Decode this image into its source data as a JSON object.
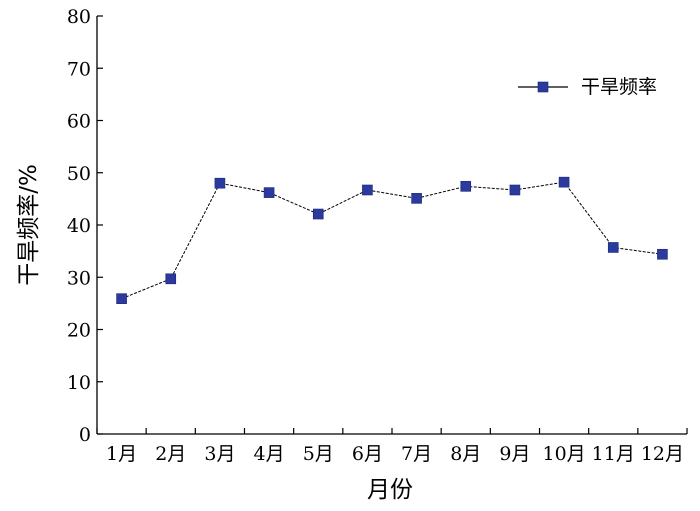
{
  "chart_data": {
    "type": "line",
    "title": "",
    "xlabel": "月份",
    "ylabel": "干旱频率/%",
    "categories": [
      "1月",
      "2月",
      "3月",
      "4月",
      "5月",
      "6月",
      "7月",
      "8月",
      "9月",
      "10月",
      "11月",
      "12月"
    ],
    "yticks": [
      "0",
      "10",
      "20",
      "30",
      "40",
      "50",
      "60",
      "70",
      "80"
    ],
    "ylim": [
      0,
      80
    ],
    "series": [
      {
        "name": "干旱频率",
        "values": [
          25.9,
          29.7,
          48.0,
          46.2,
          42.1,
          46.7,
          45.1,
          47.4,
          46.7,
          48.2,
          35.7,
          34.4
        ],
        "color": "#2b3a9e"
      }
    ],
    "legend_position": "top-right",
    "grid": false
  }
}
